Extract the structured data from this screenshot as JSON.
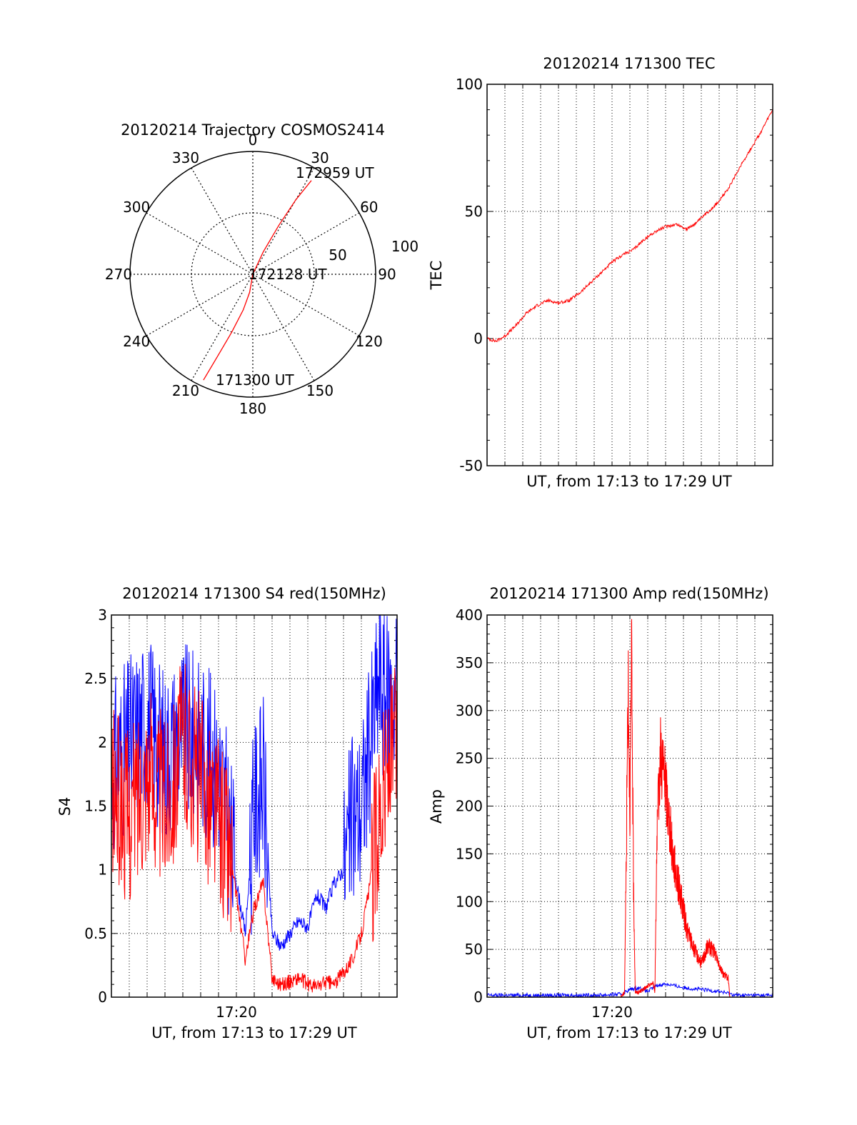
{
  "chart_data": [
    {
      "type": "polar",
      "title": "20120214 Trajectory COSMOS2414",
      "angle_labels": [
        "0",
        "30",
        "60",
        "90",
        "120",
        "150",
        "180",
        "210",
        "240",
        "270",
        "300",
        "330"
      ],
      "radial_labels": [
        "50",
        "100"
      ],
      "rlim": [
        0,
        100
      ],
      "grid": true,
      "series": [
        {
          "color": "#ff0000",
          "points": [
            [
              205,
              95
            ],
            [
              203,
              70
            ],
            [
              200,
              50
            ],
            [
              195,
              30
            ],
            [
              190,
              15
            ],
            [
              0,
              0
            ],
            [
              25,
              20
            ],
            [
              28,
              45
            ],
            [
              30,
              70
            ],
            [
              32,
              90
            ]
          ]
        }
      ],
      "annotations": [
        "172959 UT",
        "172128 UT",
        "171300 UT"
      ]
    },
    {
      "type": "line",
      "title": "20120214 171300 TEC",
      "xlabel": "UT, from 17:13 to 17:29 UT",
      "ylabel": "TEC",
      "xlim": [
        0,
        16
      ],
      "ylim": [
        -50,
        100
      ],
      "yticks": [
        "-50",
        "0",
        "50",
        "100"
      ],
      "grid": true,
      "series": [
        {
          "color": "#ff0000",
          "x": [
            0,
            0.5,
            1.0,
            1.6,
            2.2,
            2.8,
            3.4,
            4.0,
            4.6,
            5.2,
            5.8,
            6.4,
            7.0,
            7.6,
            8.2,
            8.8,
            9.4,
            10.0,
            10.6,
            11.2,
            11.8,
            12.4,
            13.0,
            13.6,
            14.2,
            14.8,
            15.4,
            16.0
          ],
          "y": [
            0,
            -1,
            1,
            5,
            10,
            13,
            15,
            14,
            15,
            18,
            22,
            26,
            30,
            33,
            35,
            39,
            42,
            44,
            45,
            43,
            46,
            50,
            54,
            60,
            68,
            75,
            82,
            90
          ]
        }
      ]
    },
    {
      "type": "line",
      "title": "20120214 171300 S4 red(150MHz)",
      "xlabel": "UT, from 17:13 to 17:29 UT",
      "ylabel": "S4",
      "xlim": [
        0,
        16
      ],
      "ylim": [
        0,
        3
      ],
      "xticks": [
        {
          "value": 7,
          "label": "17:20"
        }
      ],
      "yticks": [
        "0",
        "0.5",
        "1",
        "1.5",
        "2",
        "2.5",
        "3"
      ],
      "grid": true,
      "series": [
        {
          "color": "#0000ff",
          "x": [
            0,
            1,
            2,
            3,
            4,
            5,
            6,
            6.5,
            7,
            7.5,
            8,
            8.5,
            9,
            9.5,
            10,
            10.5,
            11,
            11.5,
            12,
            12.5,
            13,
            13.5,
            14,
            14.5,
            15,
            15.5,
            16
          ],
          "y": [
            1.8,
            2.0,
            2.2,
            1.9,
            2.1,
            2.0,
            1.8,
            1.4,
            0.9,
            0.5,
            1.5,
            1.7,
            0.5,
            0.4,
            0.5,
            0.6,
            0.55,
            0.8,
            0.7,
            0.9,
            1.0,
            1.4,
            1.5,
            2.0,
            2.5,
            2.3,
            2.5
          ]
        },
        {
          "color": "#ff0000",
          "x": [
            0,
            1,
            2,
            3,
            4,
            5,
            6,
            6.5,
            7,
            7.5,
            8,
            8.5,
            9,
            9.5,
            10,
            10.5,
            11,
            11.5,
            12,
            12.5,
            13,
            13.5,
            14,
            14.5,
            15,
            15.5,
            16
          ],
          "y": [
            1.6,
            1.4,
            1.8,
            1.5,
            2.0,
            1.7,
            1.4,
            1.2,
            0.8,
            0.3,
            0.7,
            0.9,
            0.15,
            0.1,
            0.12,
            0.15,
            0.1,
            0.08,
            0.12,
            0.1,
            0.2,
            0.3,
            0.5,
            0.9,
            1.5,
            1.8,
            2.0
          ]
        }
      ]
    },
    {
      "type": "line",
      "title": "20120214 171300 Amp red(150MHz)",
      "xlabel": "UT, from 17:13 to 17:29 UT",
      "ylabel": "Amp",
      "xlim": [
        0,
        16
      ],
      "ylim": [
        0,
        400
      ],
      "xticks": [
        {
          "value": 7,
          "label": "17:20"
        }
      ],
      "yticks": [
        "0",
        "50",
        "100",
        "150",
        "200",
        "250",
        "300",
        "350",
        "400"
      ],
      "grid": true,
      "series": [
        {
          "color": "#0000ff",
          "x": [
            0,
            2,
            4,
            6,
            7.5,
            8.0,
            8.5,
            9.0,
            9.5,
            10.0,
            11.0,
            12.0,
            13.0,
            13.5,
            14,
            15,
            16
          ],
          "y": [
            2,
            2,
            2,
            2,
            3,
            8,
            10,
            6,
            12,
            14,
            10,
            8,
            6,
            4,
            2,
            2,
            2
          ]
        },
        {
          "color": "#ff0000",
          "x": [
            7.5,
            7.7,
            7.8,
            7.9,
            8.0,
            8.1,
            8.2,
            8.3,
            8.5,
            8.9,
            9.3,
            9.4,
            9.5,
            9.7,
            10.0,
            10.4,
            10.8,
            11.2,
            11.6,
            12.0,
            12.4,
            12.8,
            13.2,
            13.5,
            13.6
          ],
          "y": [
            0,
            5,
            150,
            340,
            200,
            350,
            120,
            5,
            5,
            10,
            15,
            5,
            150,
            260,
            220,
            150,
            110,
            70,
            50,
            35,
            55,
            45,
            25,
            20,
            0
          ]
        }
      ]
    }
  ]
}
